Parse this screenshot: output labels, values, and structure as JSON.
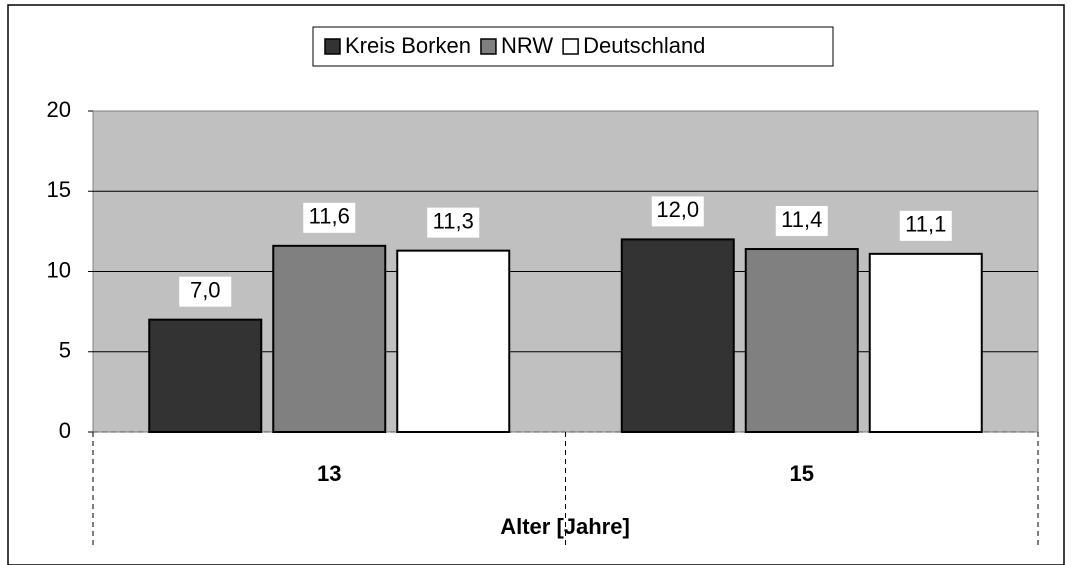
{
  "chart_data": {
    "type": "bar",
    "categories": [
      "13",
      "15"
    ],
    "x_label": "Alter [Jahre]",
    "series": [
      {
        "name": "Kreis Borken",
        "color": "#333333",
        "values": [
          7.0,
          12.0
        ],
        "value_labels": [
          "7,0",
          "12,0"
        ]
      },
      {
        "name": "NRW",
        "color": "#808080",
        "values": [
          11.6,
          11.4
        ],
        "value_labels": [
          "11,6",
          "11,4"
        ]
      },
      {
        "name": "Deutschland",
        "color": "#ffffff",
        "values": [
          11.3,
          11.1
        ],
        "value_labels": [
          "11,3",
          "11,1"
        ]
      }
    ],
    "ylim": [
      0,
      20
    ],
    "yticks": [
      0,
      5,
      10,
      15,
      20
    ],
    "grid": true,
    "legend": "top"
  }
}
